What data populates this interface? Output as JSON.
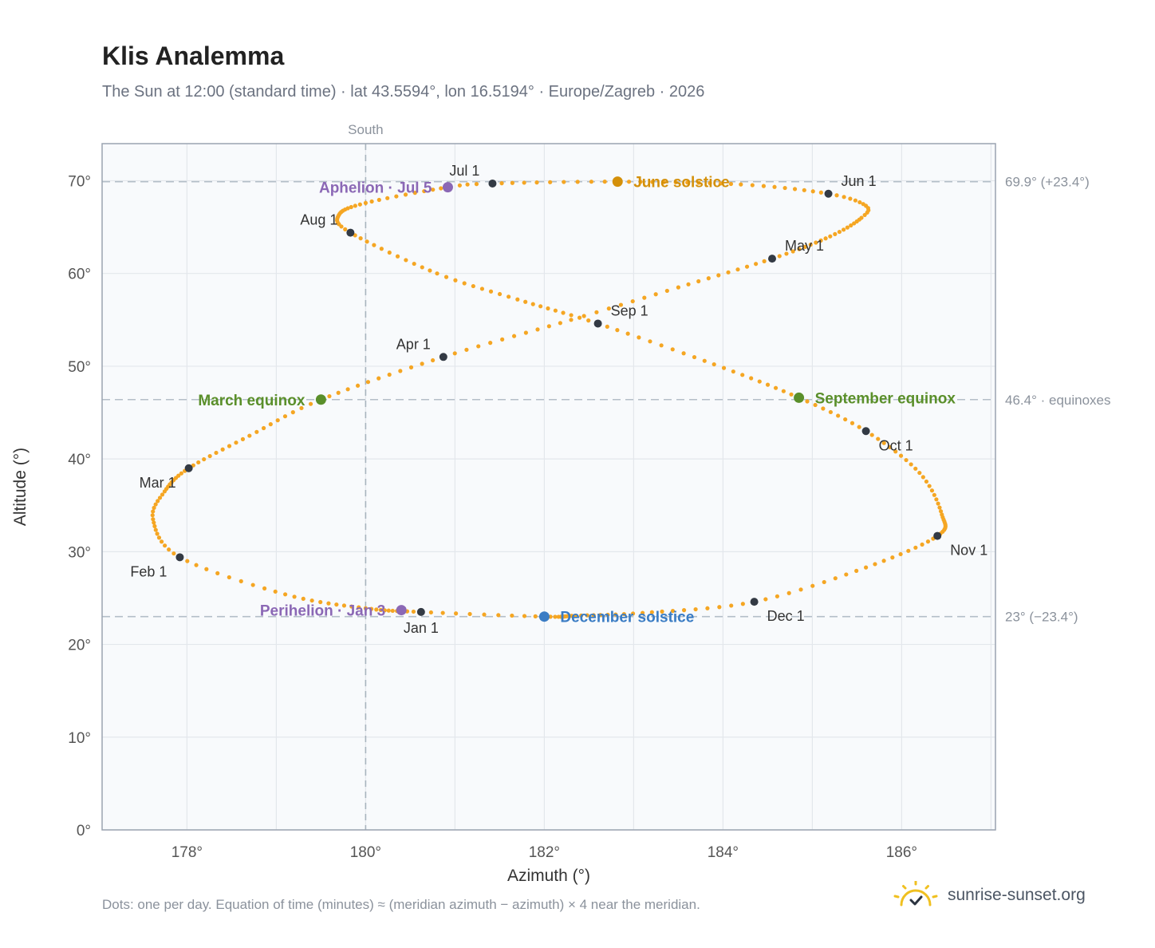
{
  "header": {
    "title": "Klis Analemma",
    "subtitle": "The Sun at 12:00 (standard time) · lat 43.5594°, lon 16.5194° · Europe/Zagreb · 2026"
  },
  "footer": {
    "note": "Dots: one per day. Equation of time (minutes) ≈ (meridian azimuth − azimuth) × 4 near the meridian.",
    "brand": "sunrise-sunset.org"
  },
  "colors": {
    "curve": "#f5a623",
    "month": "#333a44",
    "solstice_june": "#d4900a",
    "solstice_december": "#3a7cc4",
    "equinox": "#5a8f2a",
    "apsis": "#8b68b5",
    "brand_sun": "#f0c020"
  },
  "chart_data": {
    "type": "scatter",
    "xlabel": "Azimuth (°)",
    "ylabel": "Altitude (°)",
    "xlim": [
      177.05,
      187.05
    ],
    "ylim": [
      0,
      74
    ],
    "xticks": [
      178,
      180,
      182,
      184,
      186
    ],
    "yticks": [
      0,
      10,
      20,
      30,
      40,
      50,
      60,
      70
    ],
    "x_tick_suffix": "°",
    "y_tick_suffix": "°",
    "meridian": {
      "x": 180,
      "label": "South"
    },
    "reference_lines": [
      {
        "y": 69.9,
        "label": "69.9° (+23.4°)"
      },
      {
        "y": 46.4,
        "label": "46.4° · equinoxes"
      },
      {
        "y": 23.0,
        "label": "23° (−23.4°)"
      }
    ],
    "curve_anchors": [
      [
        1,
        180.62,
        23.5
      ],
      [
        12,
        180.0,
        23.9
      ],
      [
        22,
        179.1,
        25.4
      ],
      [
        32,
        177.92,
        29.4
      ],
      [
        42,
        177.62,
        33.5
      ],
      [
        50,
        177.75,
        36.5
      ],
      [
        60,
        178.02,
        39.0
      ],
      [
        70,
        178.7,
        42.5
      ],
      [
        79,
        179.5,
        46.4
      ],
      [
        91,
        180.87,
        51.0
      ],
      [
        102,
        182.3,
        55.0
      ],
      [
        111,
        183.5,
        58.5
      ],
      [
        121,
        184.55,
        61.6
      ],
      [
        131,
        185.2,
        64.0
      ],
      [
        140,
        185.55,
        66.0
      ],
      [
        145,
        185.6,
        67.3
      ],
      [
        152,
        185.18,
        68.6
      ],
      [
        161,
        184.2,
        69.6
      ],
      [
        172,
        182.82,
        69.9
      ],
      [
        182,
        181.42,
        69.7
      ],
      [
        186,
        180.92,
        69.3
      ],
      [
        196,
        180.0,
        67.6
      ],
      [
        205,
        179.7,
        66.3
      ],
      [
        213,
        179.83,
        64.4
      ],
      [
        225,
        180.8,
        60.0
      ],
      [
        234,
        181.7,
        57.2
      ],
      [
        244,
        182.6,
        54.6
      ],
      [
        255,
        183.9,
        50.2
      ],
      [
        265,
        184.85,
        46.6
      ],
      [
        274,
        185.6,
        43.0
      ],
      [
        284,
        186.2,
        38.5
      ],
      [
        294,
        186.45,
        34.0
      ],
      [
        305,
        186.4,
        31.7
      ],
      [
        315,
        185.6,
        28.3
      ],
      [
        325,
        184.35,
        24.6
      ],
      [
        335,
        183.1,
        23.4
      ],
      [
        344,
        182.35,
        23.1
      ],
      [
        355,
        182.0,
        23.0
      ],
      [
        365,
        180.68,
        23.45
      ]
    ],
    "month_markers": [
      {
        "label": "Jan 1",
        "x": 180.62,
        "y": 23.5,
        "pos": "below"
      },
      {
        "label": "Feb 1",
        "x": 177.92,
        "y": 29.4,
        "pos": "below-left"
      },
      {
        "label": "Mar 1",
        "x": 178.02,
        "y": 39.0,
        "pos": "below-left"
      },
      {
        "label": "Apr 1",
        "x": 180.87,
        "y": 51.0,
        "pos": "above-left"
      },
      {
        "label": "May 1",
        "x": 184.55,
        "y": 61.6,
        "pos": "above-right"
      },
      {
        "label": "Jun 1",
        "x": 185.18,
        "y": 68.6,
        "pos": "above-right"
      },
      {
        "label": "Jul 1",
        "x": 181.42,
        "y": 69.7,
        "pos": "above-left"
      },
      {
        "label": "Aug 1",
        "x": 179.83,
        "y": 64.4,
        "pos": "above-left"
      },
      {
        "label": "Sep 1",
        "x": 182.6,
        "y": 54.6,
        "pos": "above-right"
      },
      {
        "label": "Oct 1",
        "x": 185.6,
        "y": 43.0,
        "pos": "below-right"
      },
      {
        "label": "Nov 1",
        "x": 186.4,
        "y": 31.7,
        "pos": "below-right"
      },
      {
        "label": "Dec 1",
        "x": 184.35,
        "y": 24.6,
        "pos": "below-right"
      }
    ],
    "events": [
      {
        "label": "June solstice",
        "x": 182.82,
        "y": 69.9,
        "color_key": "solstice_june",
        "pos": "right"
      },
      {
        "label": "December solstice",
        "x": 182.0,
        "y": 23.0,
        "color_key": "solstice_december",
        "pos": "right"
      },
      {
        "label": "March equinox",
        "x": 179.5,
        "y": 46.4,
        "color_key": "equinox",
        "pos": "left"
      },
      {
        "label": "September equinox",
        "x": 184.85,
        "y": 46.6,
        "color_key": "equinox",
        "pos": "right"
      },
      {
        "label": "Aphelion · Jul 5",
        "x": 180.92,
        "y": 69.3,
        "color_key": "apsis",
        "pos": "left"
      },
      {
        "label": "Perihelion · Jan 3",
        "x": 180.4,
        "y": 23.7,
        "color_key": "apsis",
        "pos": "left"
      }
    ]
  }
}
